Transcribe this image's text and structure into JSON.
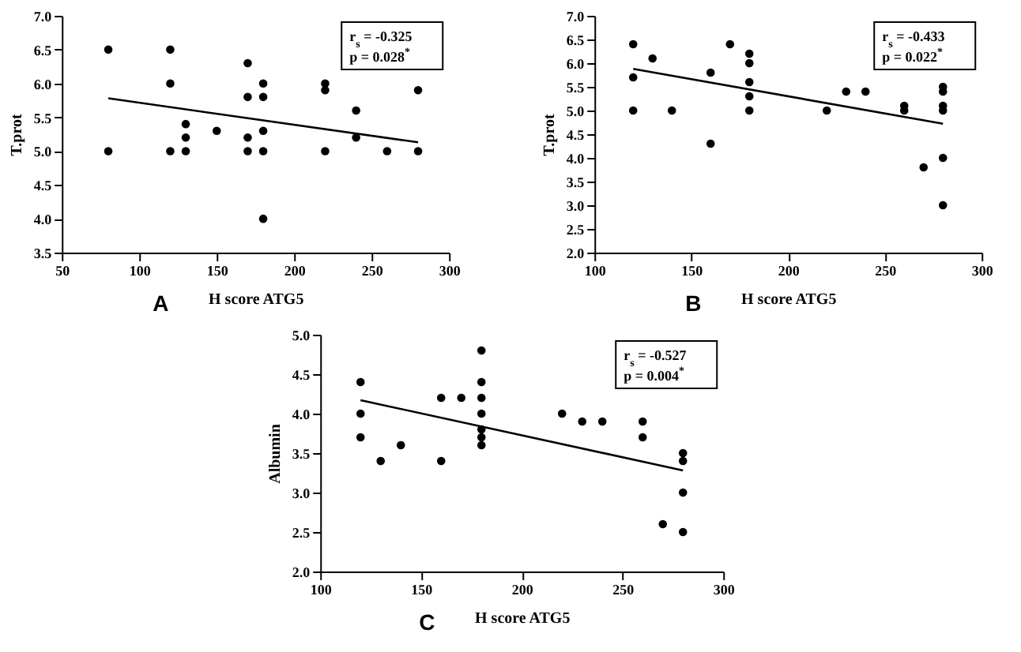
{
  "chart_data": [
    {
      "type": "scatter",
      "xlabel": "H score ATG5",
      "ylabel": "T.prot",
      "annotations": [
        "r$_{s}$ = -0.325",
        "p = 0.028$^{*}$",
        "A"
      ],
      "xlim": [
        50,
        300
      ],
      "xticks": [
        50,
        100,
        150,
        200,
        250,
        300
      ],
      "ylim": [
        3.5,
        7
      ],
      "yticks": [
        {
          "value": 3.5,
          "label": "3.5"
        },
        {
          "value": 4,
          "label": "4.0"
        },
        {
          "value": 4.5,
          "label": "4.5"
        },
        {
          "value": 5,
          "label": "5.0"
        },
        {
          "value": 5.5,
          "label": "5.5"
        },
        {
          "value": 6,
          "label": "6.0"
        },
        {
          "value": 6.5,
          "label": "6.5"
        },
        {
          "value": 7,
          "label": "7.0"
        }
      ],
      "grid": false,
      "series": [
        {
          "marker": "circle",
          "color": "#000000",
          "x": [
            80,
            80,
            120,
            120,
            120,
            130,
            130,
            130,
            150,
            170,
            170,
            170,
            170,
            180,
            180,
            180,
            180,
            180,
            220,
            220,
            220,
            240,
            240,
            260,
            280,
            280
          ],
          "values": [
            6.5,
            5.0,
            6.5,
            6.0,
            5.0,
            5.4,
            5.2,
            5.0,
            5.3,
            6.3,
            5.8,
            5.2,
            5.0,
            6.0,
            5.8,
            5.3,
            5.0,
            4.0,
            6.0,
            5.9,
            5.0,
            5.6,
            5.2,
            5.0,
            5.9,
            5.0
          ]
        },
        {
          "type": "line",
          "marker": "none",
          "color": "#000000",
          "x": [
            80,
            280
          ],
          "values": [
            5.78,
            5.13
          ]
        }
      ]
    },
    {
      "type": "scatter",
      "xlabel": "H score ATG5",
      "ylabel": "T.prot",
      "annotations": [
        "r$_{s}$ = -0.433",
        "p = 0.022$^{*}$",
        "B"
      ],
      "xlim": [
        100,
        300
      ],
      "xticks": [
        100,
        150,
        200,
        250,
        300
      ],
      "ylim": [
        2,
        7
      ],
      "yticks": [
        {
          "value": 2,
          "label": "2.0"
        },
        {
          "value": 2.5,
          "label": "2.5"
        },
        {
          "value": 3,
          "label": "3.0"
        },
        {
          "value": 3.5,
          "label": "3.5"
        },
        {
          "value": 4,
          "label": "4.0"
        },
        {
          "value": 4.5,
          "label": "4.5"
        },
        {
          "value": 5,
          "label": "5.0"
        },
        {
          "value": 5.5,
          "label": "5.5"
        },
        {
          "value": 6,
          "label": "6.0"
        },
        {
          "value": 6.5,
          "label": "6.5"
        },
        {
          "value": 7,
          "label": "7.0"
        }
      ],
      "grid": false,
      "series": [
        {
          "marker": "circle",
          "color": "#000000",
          "x": [
            120,
            120,
            120,
            130,
            140,
            160,
            160,
            170,
            180,
            180,
            180,
            180,
            180,
            220,
            230,
            240,
            260,
            260,
            270,
            280,
            280,
            280,
            280,
            280,
            280
          ],
          "values": [
            6.4,
            5.7,
            5.0,
            6.1,
            5.0,
            5.8,
            4.3,
            6.4,
            6.2,
            6.0,
            5.6,
            5.3,
            5.0,
            5.0,
            5.4,
            5.4,
            5.1,
            5.0,
            3.8,
            5.5,
            5.4,
            5.1,
            5.0,
            4.0,
            3.0
          ]
        },
        {
          "type": "line",
          "marker": "none",
          "color": "#000000",
          "x": [
            120,
            280
          ],
          "values": [
            5.88,
            4.72
          ]
        }
      ]
    },
    {
      "type": "scatter",
      "xlabel": "H score ATG5",
      "ylabel": "Albumin",
      "annotations": [
        "r$_{s}$ = -0.527",
        "p = 0.004$^{*}$",
        "C"
      ],
      "xlim": [
        100,
        300
      ],
      "xticks": [
        100,
        150,
        200,
        250,
        300
      ],
      "ylim": [
        2,
        5
      ],
      "yticks": [
        {
          "value": 2,
          "label": "2.0"
        },
        {
          "value": 2.5,
          "label": "2.5"
        },
        {
          "value": 3,
          "label": "3.0"
        },
        {
          "value": 3.5,
          "label": "3.5"
        },
        {
          "value": 4,
          "label": "4.0"
        },
        {
          "value": 4.5,
          "label": "4.5"
        },
        {
          "value": 5,
          "label": "5.0"
        }
      ],
      "grid": false,
      "series": [
        {
          "marker": "circle",
          "color": "#000000",
          "x": [
            120,
            120,
            120,
            130,
            140,
            160,
            160,
            170,
            180,
            180,
            180,
            180,
            180,
            180,
            180,
            220,
            230,
            240,
            260,
            260,
            270,
            280,
            280,
            280,
            280
          ],
          "values": [
            4.4,
            4.0,
            3.7,
            3.4,
            3.6,
            4.2,
            3.4,
            4.2,
            4.8,
            4.4,
            4.2,
            4.0,
            3.8,
            3.7,
            3.6,
            4.0,
            3.9,
            3.9,
            3.9,
            3.7,
            2.6,
            3.5,
            3.4,
            3.0,
            2.5
          ]
        },
        {
          "type": "line",
          "marker": "none",
          "color": "#000000",
          "x": [
            120,
            280
          ],
          "values": [
            4.17,
            3.28
          ]
        }
      ]
    }
  ]
}
